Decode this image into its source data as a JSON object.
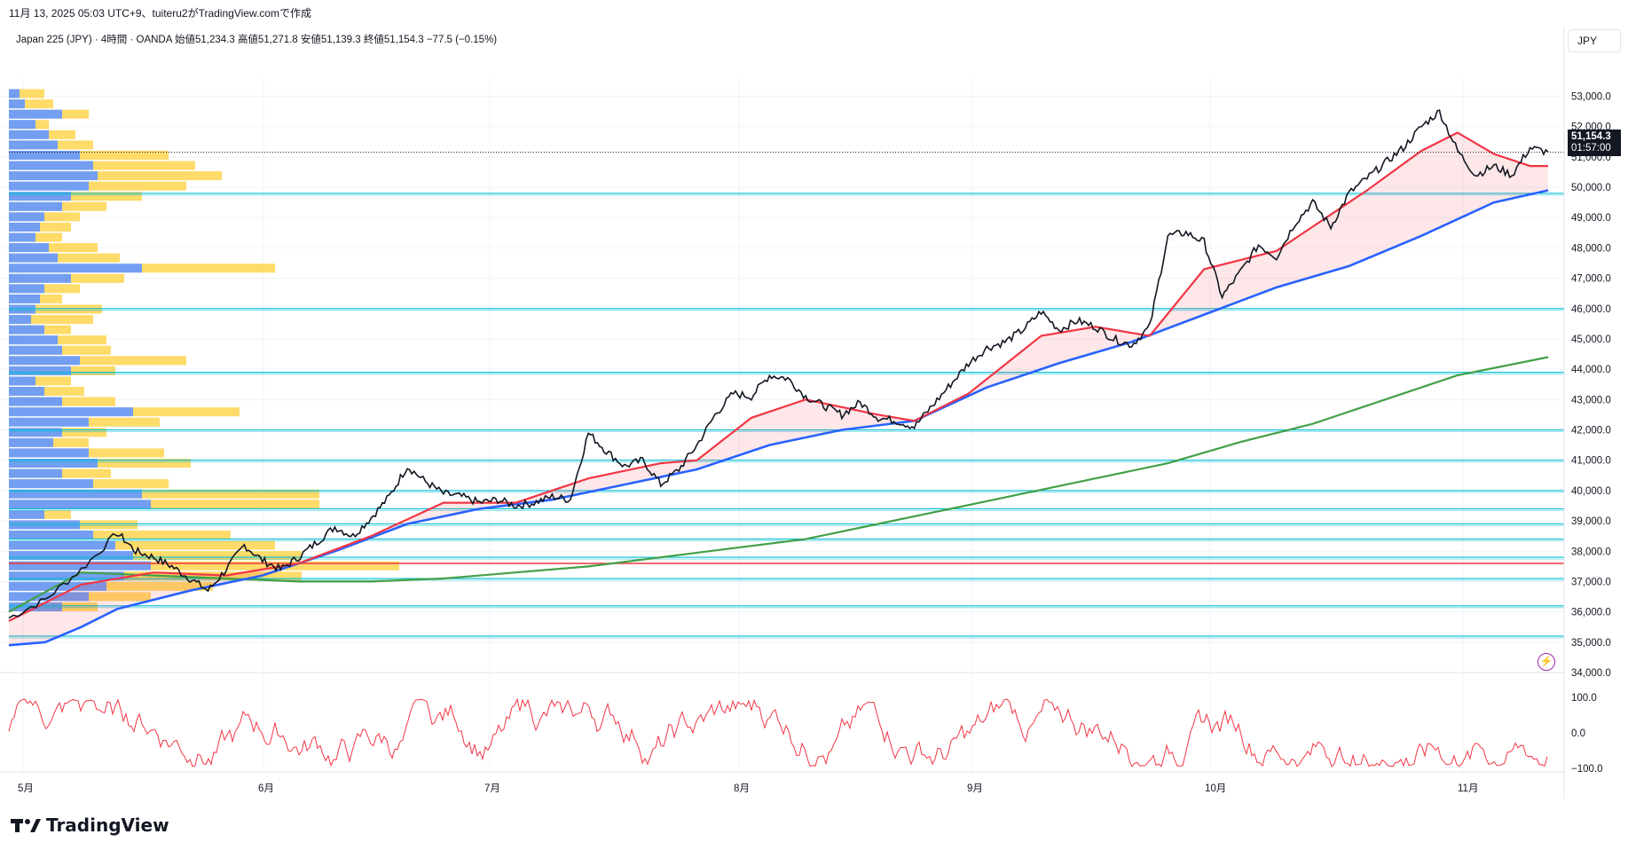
{
  "caption": "11月 13, 2025 05:03 UTC+9、tuiteru2がTradingView.comで作成",
  "legend": {
    "symbol": "Japan 225 (JPY) · 4時間 · OANDA",
    "open": "始値51,234.3",
    "high": "高値51,271.8",
    "low": "安値51,139.3",
    "close": "終値51,154.3",
    "change": "−77.5 (−0.15%)"
  },
  "currency": "JPY",
  "last_price": {
    "value": "51,154.3",
    "countdown": "01:57:00"
  },
  "brand": "TradingView",
  "colors": {
    "ema_fast": "#f23645",
    "ema_mid": "#2962ff",
    "ema_slow": "#43a047",
    "candle": "#131722",
    "level": "#00bcd4",
    "red_level": "#f23645",
    "vp_blue": "#5b8def",
    "vp_yellow": "#ffd54f",
    "oscillator": "#f23645"
  },
  "chart_data": {
    "type": "line",
    "y_axis": {
      "ticks": [
        "53,000.0",
        "52,000.0",
        "51,000.0",
        "50,000.0",
        "49,000.0",
        "48,000.0",
        "47,000.0",
        "46,000.0",
        "45,000.0",
        "44,000.0",
        "43,000.0",
        "42,000.0",
        "41,000.0",
        "40,000.0",
        "39,000.0",
        "38,000.0",
        "37,000.0",
        "36,000.0",
        "35,000.0",
        "34,000.0"
      ],
      "ylim": [
        34000,
        53600
      ]
    },
    "oscillator_axis": {
      "ticks": [
        "100.0",
        "0.0",
        "−100.0"
      ],
      "ylim": [
        -100,
        100
      ]
    },
    "x_axis": {
      "ticks": [
        "5月",
        "6月",
        "7月",
        "8月",
        "9月",
        "10月",
        "11月"
      ]
    },
    "price_path": [
      [
        0,
        35800
      ],
      [
        2,
        36400
      ],
      [
        4,
        37400
      ],
      [
        6,
        38600
      ],
      [
        7,
        38000
      ],
      [
        8,
        37800
      ],
      [
        9,
        37500
      ],
      [
        10,
        37100
      ],
      [
        11,
        36700
      ],
      [
        12,
        37400
      ],
      [
        13,
        38200
      ],
      [
        14,
        37700
      ],
      [
        15,
        37400
      ],
      [
        16,
        37800
      ],
      [
        17,
        38300
      ],
      [
        18,
        38800
      ],
      [
        19,
        38500
      ],
      [
        20,
        39100
      ],
      [
        21,
        39800
      ],
      [
        22,
        40800
      ],
      [
        23,
        40300
      ],
      [
        24,
        39900
      ],
      [
        25,
        39800
      ],
      [
        26,
        39600
      ],
      [
        27,
        39700
      ],
      [
        28,
        39500
      ],
      [
        29,
        39600
      ],
      [
        30,
        39800
      ],
      [
        31,
        39700
      ],
      [
        32,
        41900
      ],
      [
        33,
        41300
      ],
      [
        34,
        40800
      ],
      [
        35,
        41000
      ],
      [
        36,
        40200
      ],
      [
        37,
        40700
      ],
      [
        38,
        41500
      ],
      [
        39,
        42500
      ],
      [
        40,
        43200
      ],
      [
        41,
        43100
      ],
      [
        42,
        43800
      ],
      [
        43,
        43700
      ],
      [
        44,
        43100
      ],
      [
        45,
        42800
      ],
      [
        46,
        42500
      ],
      [
        47,
        42900
      ],
      [
        48,
        42400
      ],
      [
        49,
        42300
      ],
      [
        50,
        42100
      ],
      [
        51,
        42800
      ],
      [
        52,
        43500
      ],
      [
        53,
        44200
      ],
      [
        54,
        44700
      ],
      [
        55,
        44900
      ],
      [
        56,
        45300
      ],
      [
        57,
        45900
      ],
      [
        58,
        45300
      ],
      [
        59,
        45600
      ],
      [
        60,
        45400
      ],
      [
        61,
        45000
      ],
      [
        62,
        44800
      ],
      [
        63,
        45400
      ],
      [
        64,
        48400
      ],
      [
        65,
        48500
      ],
      [
        66,
        48200
      ],
      [
        67,
        46400
      ],
      [
        68,
        47200
      ],
      [
        69,
        48100
      ],
      [
        70,
        47700
      ],
      [
        71,
        48800
      ],
      [
        72,
        49500
      ],
      [
        73,
        48700
      ],
      [
        74,
        49800
      ],
      [
        75,
        50300
      ],
      [
        76,
        50800
      ],
      [
        77,
        51300
      ],
      [
        78,
        52000
      ],
      [
        79,
        52500
      ],
      [
        80,
        51200
      ],
      [
        81,
        50400
      ],
      [
        82,
        50700
      ],
      [
        83,
        50400
      ],
      [
        84,
        51300
      ],
      [
        85,
        51154
      ]
    ],
    "ema_fast": [
      [
        0,
        35700
      ],
      [
        4,
        36900
      ],
      [
        8,
        37300
      ],
      [
        12,
        37200
      ],
      [
        16,
        37600
      ],
      [
        20,
        38500
      ],
      [
        24,
        39600
      ],
      [
        28,
        39600
      ],
      [
        32,
        40400
      ],
      [
        36,
        40900
      ],
      [
        38,
        41000
      ],
      [
        41,
        42400
      ],
      [
        44,
        43000
      ],
      [
        48,
        42500
      ],
      [
        50,
        42300
      ],
      [
        53,
        43200
      ],
      [
        57,
        45100
      ],
      [
        60,
        45400
      ],
      [
        63,
        45100
      ],
      [
        66,
        47300
      ],
      [
        68,
        47600
      ],
      [
        70,
        47900
      ],
      [
        72,
        48700
      ],
      [
        75,
        49900
      ],
      [
        78,
        51200
      ],
      [
        80,
        51800
      ],
      [
        82,
        51100
      ],
      [
        84,
        50700
      ],
      [
        85,
        50700
      ]
    ],
    "ema_mid": [
      [
        0,
        34900
      ],
      [
        2,
        35000
      ],
      [
        4,
        35500
      ],
      [
        6,
        36100
      ],
      [
        10,
        36700
      ],
      [
        14,
        37200
      ],
      [
        18,
        38000
      ],
      [
        22,
        38900
      ],
      [
        26,
        39400
      ],
      [
        30,
        39700
      ],
      [
        34,
        40200
      ],
      [
        38,
        40700
      ],
      [
        42,
        41500
      ],
      [
        46,
        42000
      ],
      [
        50,
        42300
      ],
      [
        54,
        43400
      ],
      [
        58,
        44200
      ],
      [
        62,
        44900
      ],
      [
        66,
        45800
      ],
      [
        70,
        46700
      ],
      [
        74,
        47400
      ],
      [
        78,
        48400
      ],
      [
        82,
        49500
      ],
      [
        85,
        49900
      ]
    ],
    "ema_slow": [
      [
        0,
        36000
      ],
      [
        4,
        37300
      ],
      [
        8,
        37200
      ],
      [
        12,
        37100
      ],
      [
        16,
        37000
      ],
      [
        20,
        37000
      ],
      [
        24,
        37100
      ],
      [
        28,
        37300
      ],
      [
        32,
        37500
      ],
      [
        36,
        37800
      ],
      [
        40,
        38100
      ],
      [
        44,
        38400
      ],
      [
        48,
        38900
      ],
      [
        52,
        39400
      ],
      [
        56,
        39900
      ],
      [
        60,
        40400
      ],
      [
        64,
        40900
      ],
      [
        68,
        41600
      ],
      [
        72,
        42200
      ],
      [
        76,
        43000
      ],
      [
        80,
        43800
      ],
      [
        85,
        44400
      ]
    ],
    "levels": [
      49800,
      46000,
      43900,
      42000,
      41000,
      40000,
      39400,
      38900,
      38400,
      37800,
      37100,
      36200,
      35200
    ],
    "red_level": 37600,
    "last_close": 51154.3,
    "volume_profile_rows": [
      {
        "blue": 12,
        "yellow": 40
      },
      {
        "blue": 18,
        "yellow": 50
      },
      {
        "blue": 60,
        "yellow": 90
      },
      {
        "blue": 30,
        "yellow": 45
      },
      {
        "blue": 45,
        "yellow": 75
      },
      {
        "blue": 55,
        "yellow": 95
      },
      {
        "blue": 80,
        "yellow": 180
      },
      {
        "blue": 95,
        "yellow": 210
      },
      {
        "blue": 100,
        "yellow": 240
      },
      {
        "blue": 90,
        "yellow": 200
      },
      {
        "blue": 70,
        "yellow": 150
      },
      {
        "blue": 60,
        "yellow": 110
      },
      {
        "blue": 40,
        "yellow": 80
      },
      {
        "blue": 35,
        "yellow": 70
      },
      {
        "blue": 30,
        "yellow": 60
      },
      {
        "blue": 45,
        "yellow": 100
      },
      {
        "blue": 55,
        "yellow": 125
      },
      {
        "blue": 150,
        "yellow": 300
      },
      {
        "blue": 70,
        "yellow": 130
      },
      {
        "blue": 40,
        "yellow": 80
      },
      {
        "blue": 35,
        "yellow": 60
      },
      {
        "blue": 30,
        "yellow": 105
      },
      {
        "blue": 25,
        "yellow": 95
      },
      {
        "blue": 40,
        "yellow": 70
      },
      {
        "blue": 55,
        "yellow": 110
      },
      {
        "blue": 60,
        "yellow": 115
      },
      {
        "blue": 80,
        "yellow": 200
      },
      {
        "blue": 70,
        "yellow": 120
      },
      {
        "blue": 30,
        "yellow": 70
      },
      {
        "blue": 40,
        "yellow": 85
      },
      {
        "blue": 60,
        "yellow": 120
      },
      {
        "blue": 140,
        "yellow": 260
      },
      {
        "blue": 90,
        "yellow": 170
      },
      {
        "blue": 60,
        "yellow": 110
      },
      {
        "blue": 50,
        "yellow": 90
      },
      {
        "blue": 90,
        "yellow": 175
      },
      {
        "blue": 100,
        "yellow": 205
      },
      {
        "blue": 60,
        "yellow": 115
      },
      {
        "blue": 95,
        "yellow": 180
      },
      {
        "blue": 150,
        "yellow": 350
      },
      {
        "blue": 160,
        "yellow": 350
      },
      {
        "blue": 40,
        "yellow": 70
      },
      {
        "blue": 80,
        "yellow": 145
      },
      {
        "blue": 95,
        "yellow": 250
      },
      {
        "blue": 120,
        "yellow": 300
      },
      {
        "blue": 140,
        "yellow": 330
      },
      {
        "blue": 160,
        "yellow": 440
      },
      {
        "blue": 130,
        "yellow": 330
      },
      {
        "blue": 110,
        "yellow": 230
      },
      {
        "blue": 90,
        "yellow": 160
      },
      {
        "blue": 60,
        "yellow": 100
      }
    ]
  }
}
